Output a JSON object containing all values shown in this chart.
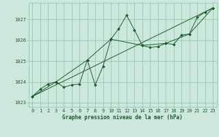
{
  "bg_color": "#cce8dc",
  "plot_bg_color": "#cce8dc",
  "grid_color": "#88c4a8",
  "line_color": "#1a5c2a",
  "xlabel": "Graphe pression niveau de la mer (hPa)",
  "xlim": [
    -0.5,
    23.5
  ],
  "ylim": [
    1022.8,
    1027.8
  ],
  "yticks": [
    1023,
    1024,
    1025,
    1026,
    1027
  ],
  "xticks": [
    0,
    1,
    2,
    3,
    4,
    5,
    6,
    7,
    8,
    9,
    10,
    11,
    12,
    13,
    14,
    15,
    16,
    17,
    18,
    19,
    20,
    21,
    22,
    23
  ],
  "series1_x": [
    0,
    1,
    2,
    3,
    4,
    5,
    6,
    7,
    8,
    9,
    10,
    11,
    12,
    13,
    14,
    15,
    16,
    17,
    18,
    19,
    20,
    21,
    22,
    23
  ],
  "series1_y": [
    1023.3,
    1023.65,
    1023.9,
    1024.0,
    1023.75,
    1023.85,
    1023.9,
    1025.05,
    1023.85,
    1024.75,
    1026.05,
    1026.55,
    1027.2,
    1026.5,
    1025.75,
    1025.65,
    1025.7,
    1025.85,
    1025.8,
    1026.25,
    1026.3,
    1027.1,
    1027.35,
    1027.55
  ],
  "series2_x": [
    0,
    3,
    7,
    10,
    14,
    17,
    20,
    23
  ],
  "series2_y": [
    1023.3,
    1024.0,
    1025.05,
    1026.05,
    1025.75,
    1025.85,
    1026.3,
    1027.55
  ],
  "series3_x": [
    0,
    23
  ],
  "series3_y": [
    1023.3,
    1027.55
  ],
  "tick_fontsize": 5.0,
  "xlabel_fontsize": 5.5
}
